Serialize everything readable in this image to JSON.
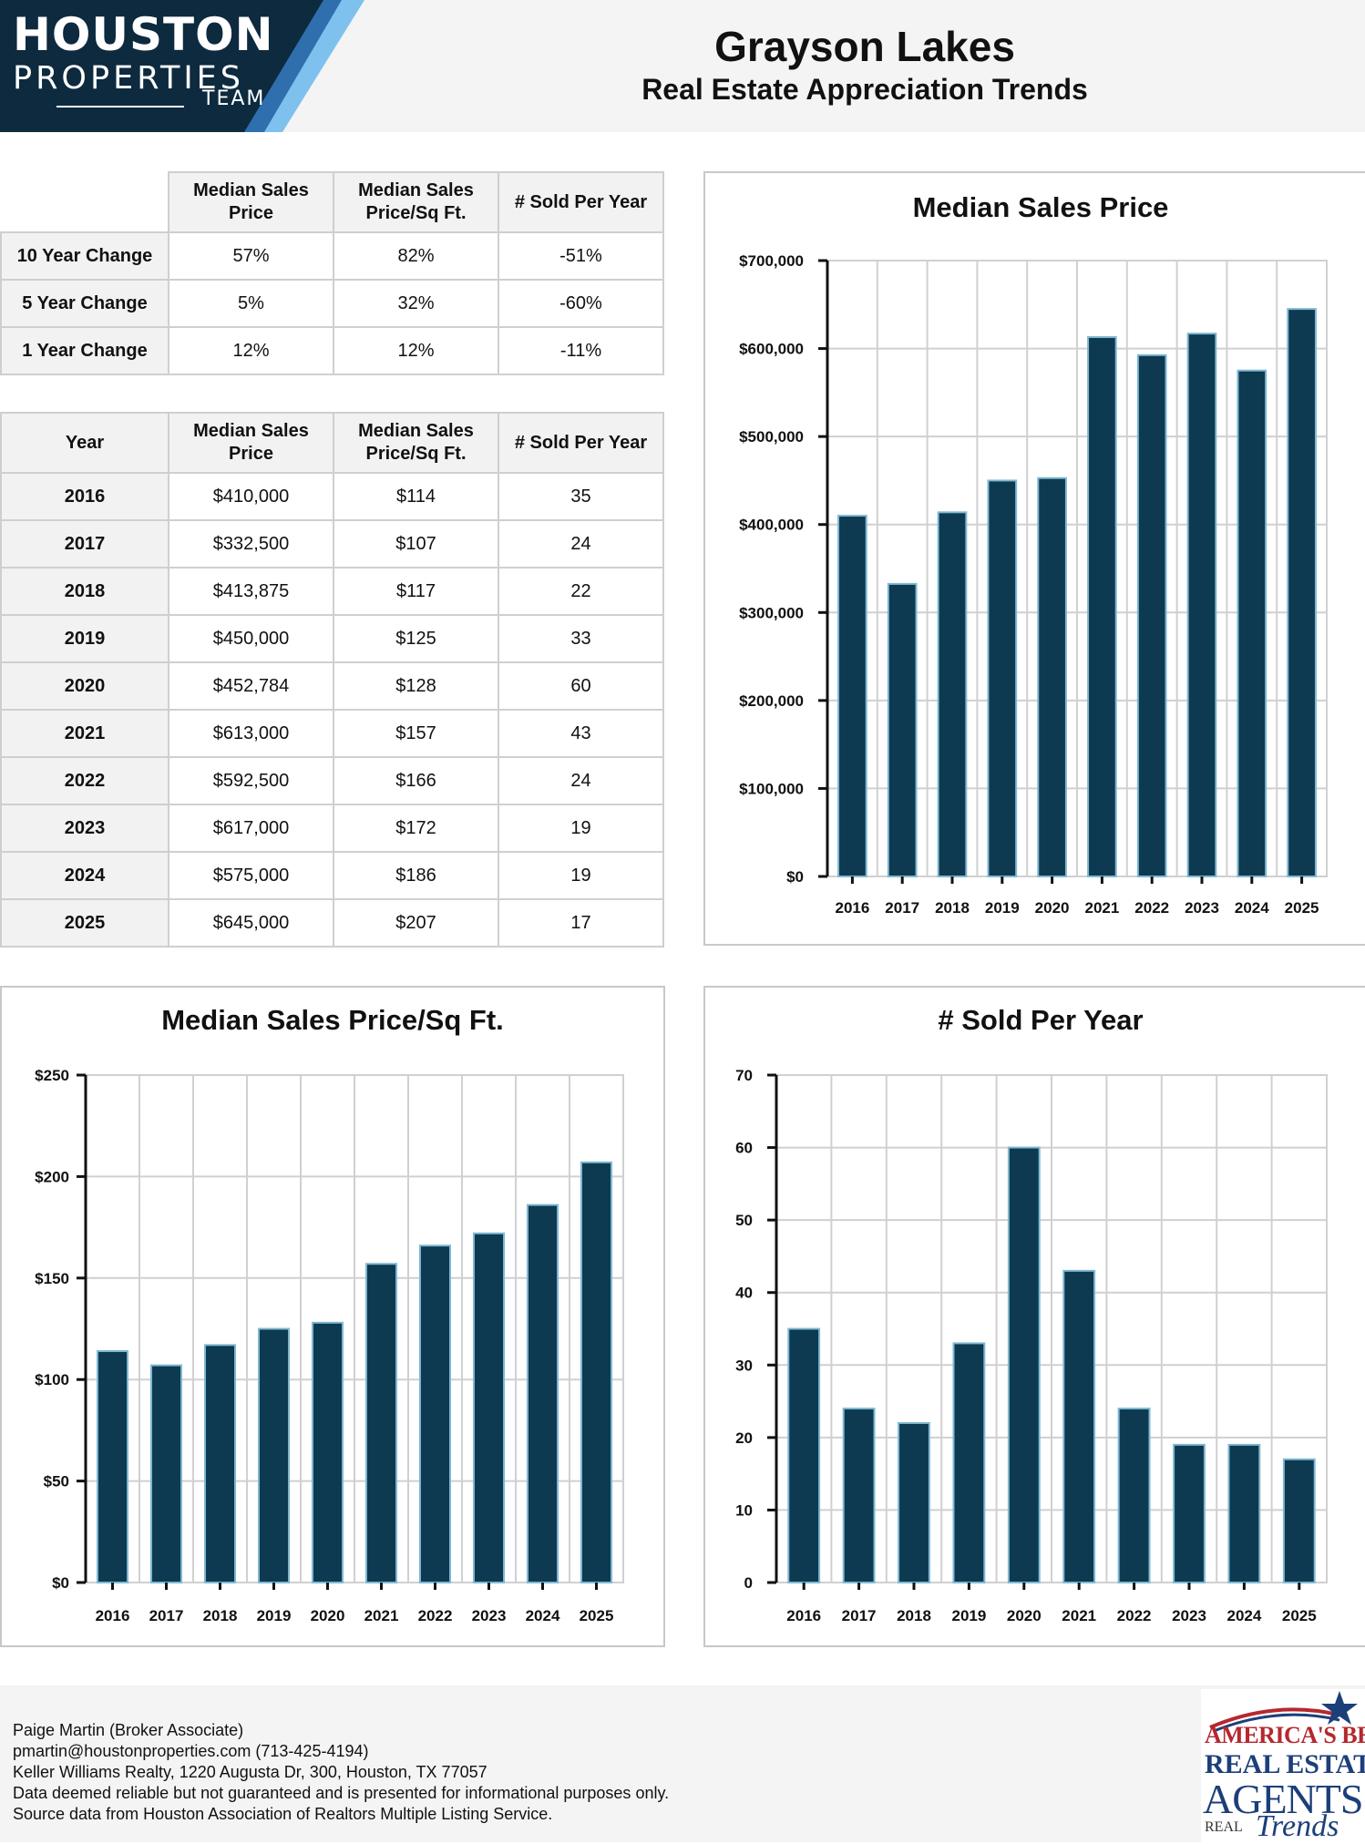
{
  "logo": {
    "line1": "HOUSTON",
    "line2": "PROPERTIES",
    "line3": "TEAM",
    "bg": "#0d2a3f",
    "stripe1": "#2f6fae",
    "stripe2": "#7ec1ee"
  },
  "header": {
    "title": "Grayson Lakes",
    "subtitle": "Real Estate Appreciation Trends"
  },
  "change_table": {
    "headers": [
      "Median Sales Price",
      "Median Sales Price/Sq Ft.",
      "# Sold Per Year"
    ],
    "rows": [
      {
        "label": "10 Year Change",
        "price": "57%",
        "ppsf": "82%",
        "sold": "-51%"
      },
      {
        "label": "5 Year Change",
        "price": "5%",
        "ppsf": "32%",
        "sold": "-60%"
      },
      {
        "label": "1 Year Change",
        "price": "12%",
        "ppsf": "12%",
        "sold": "-11%"
      }
    ]
  },
  "year_table": {
    "headers": [
      "Year",
      "Median Sales Price",
      "Median Sales Price/Sq Ft.",
      "# Sold Per Year"
    ],
    "rows": [
      {
        "year": "2016",
        "price": "$410,000",
        "ppsf": "$114",
        "sold": "35"
      },
      {
        "year": "2017",
        "price": "$332,500",
        "ppsf": "$107",
        "sold": "24"
      },
      {
        "year": "2018",
        "price": "$413,875",
        "ppsf": "$117",
        "sold": "22"
      },
      {
        "year": "2019",
        "price": "$450,000",
        "ppsf": "$125",
        "sold": "33"
      },
      {
        "year": "2020",
        "price": "$452,784",
        "ppsf": "$128",
        "sold": "60"
      },
      {
        "year": "2021",
        "price": "$613,000",
        "ppsf": "$157",
        "sold": "43"
      },
      {
        "year": "2022",
        "price": "$592,500",
        "ppsf": "$166",
        "sold": "24"
      },
      {
        "year": "2023",
        "price": "$617,000",
        "ppsf": "$172",
        "sold": "19"
      },
      {
        "year": "2024",
        "price": "$575,000",
        "ppsf": "$186",
        "sold": "19"
      },
      {
        "year": "2025",
        "price": "$645,000",
        "ppsf": "$207",
        "sold": "17"
      }
    ]
  },
  "colors": {
    "bar": "#0d3a50",
    "bar_edge": "#7fb8d3",
    "grid": "#d0d0d0"
  },
  "chart_data": [
    {
      "type": "bar",
      "title": "Median Sales Price",
      "categories": [
        "2016",
        "2017",
        "2018",
        "2019",
        "2020",
        "2021",
        "2022",
        "2023",
        "2024",
        "2025"
      ],
      "values": [
        410000,
        332500,
        413875,
        450000,
        452784,
        613000,
        592500,
        617000,
        575000,
        645000
      ],
      "ylim": [
        0,
        700000
      ],
      "yticks": [
        0,
        100000,
        200000,
        300000,
        400000,
        500000,
        600000,
        700000
      ],
      "ytick_labels": [
        "$0",
        "$100,000",
        "$200,000",
        "$300,000",
        "$400,000",
        "$500,000",
        "$600,000",
        "$700,000"
      ],
      "grid": true
    },
    {
      "type": "bar",
      "title": "Median Sales Price/Sq Ft.",
      "categories": [
        "2016",
        "2017",
        "2018",
        "2019",
        "2020",
        "2021",
        "2022",
        "2023",
        "2024",
        "2025"
      ],
      "values": [
        114,
        107,
        117,
        125,
        128,
        157,
        166,
        172,
        186,
        207
      ],
      "ylim": [
        0,
        250
      ],
      "yticks": [
        0,
        50,
        100,
        150,
        200,
        250
      ],
      "ytick_labels": [
        "$0",
        "$50",
        "$100",
        "$150",
        "$200",
        "$250"
      ],
      "grid": true
    },
    {
      "type": "bar",
      "title": "# Sold Per Year",
      "categories": [
        "2016",
        "2017",
        "2018",
        "2019",
        "2020",
        "2021",
        "2022",
        "2023",
        "2024",
        "2025"
      ],
      "values": [
        35,
        24,
        22,
        33,
        60,
        43,
        24,
        19,
        19,
        17
      ],
      "ylim": [
        0,
        70
      ],
      "yticks": [
        0,
        10,
        20,
        30,
        40,
        50,
        60,
        70
      ],
      "ytick_labels": [
        "0",
        "10",
        "20",
        "30",
        "40",
        "50",
        "60",
        "70"
      ],
      "grid": true
    }
  ],
  "footer": {
    "lines": [
      "Paige Martin (Broker Associate)",
      "pmartin@houstonproperties.com (713-425-4194)",
      "Keller Williams Realty, 1220 Augusta Dr, 300, Houston, TX 77057",
      "Data deemed reliable but not guaranteed and is presented for informational purposes only.",
      "Source data from Houston Association of Realtors Multiple Listing Service."
    ]
  },
  "badge": {
    "line1": "AMERICA'S BEST",
    "line2": "REAL ESTATE",
    "line3": "AGENTS",
    "line4": "REAL",
    "line5": "Trends"
  }
}
